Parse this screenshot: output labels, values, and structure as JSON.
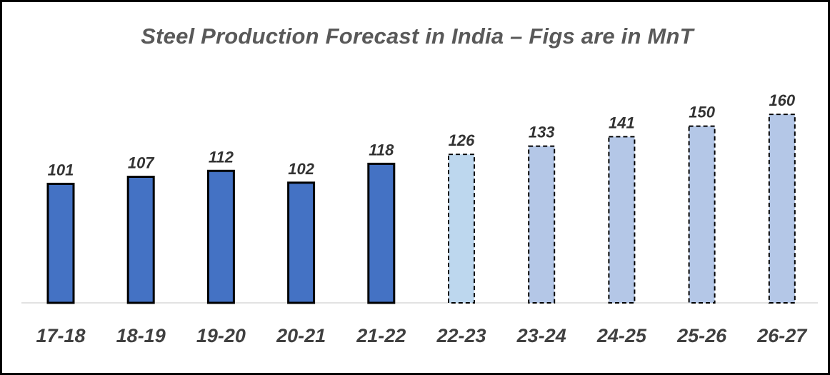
{
  "chart_data": {
    "type": "bar",
    "title": "Steel Production Forecast in India – Figs are in MnT",
    "categories": [
      "17-18",
      "18-19",
      "19-20",
      "20-21",
      "21-22",
      "22-23",
      "23-24",
      "24-25",
      "25-26",
      "26-27"
    ],
    "values": [
      101,
      107,
      112,
      102,
      118,
      126,
      133,
      141,
      150,
      160
    ],
    "bar_styles": [
      "actual",
      "actual",
      "actual",
      "actual",
      "actual",
      "forecast-light",
      "forecast",
      "forecast",
      "forecast",
      "forecast"
    ],
    "data_labels": true,
    "xlabel": "",
    "ylabel": "",
    "ylim": [
      0,
      175
    ],
    "grid": false,
    "legend": "none",
    "colors": {
      "actual": "#4472c4",
      "forecast": "#b4c7e7",
      "forecast-light": "#bdd7ee",
      "outline": "#000000",
      "title": "#595959",
      "tick": "#404040",
      "label": "#333333"
    }
  }
}
